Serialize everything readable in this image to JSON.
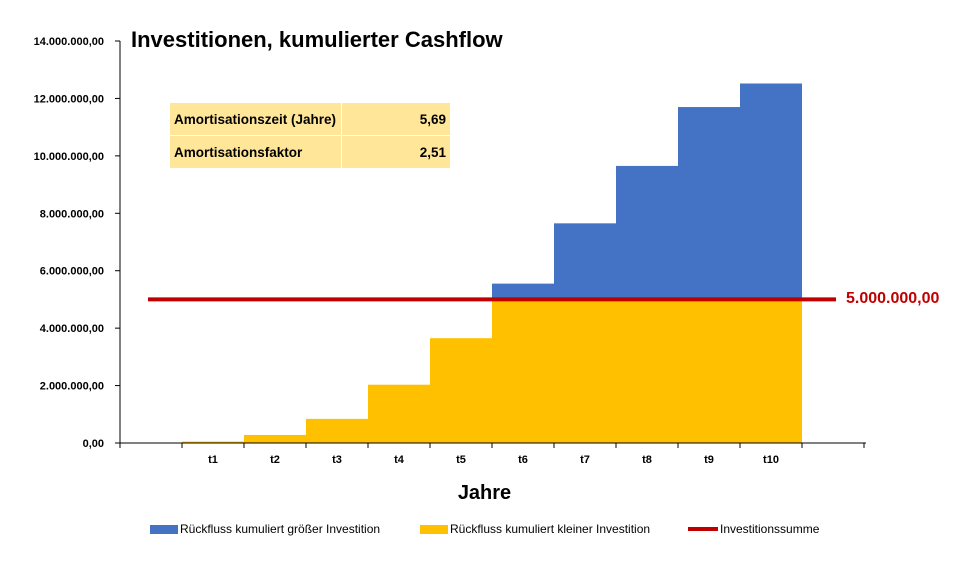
{
  "chart_data": {
    "type": "bar",
    "title": "Investitionen, kumulierter Cashflow",
    "xlabel": "Jahre",
    "ylabel": "",
    "categories": [
      "t1",
      "t2",
      "t3",
      "t4",
      "t5",
      "t6",
      "t7",
      "t8",
      "t9",
      "t10"
    ],
    "ylim": [
      0,
      14000000
    ],
    "yticks": [
      0,
      2000000,
      4000000,
      6000000,
      8000000,
      10000000,
      12000000,
      14000000
    ],
    "ytick_labels": [
      "0,00",
      "2.000.000,00",
      "4.000.000,00",
      "6.000.000,00",
      "8.000.000,00",
      "10.000.000,00",
      "12.000.000,00",
      "14.000.000,00"
    ],
    "stacked": true,
    "series": [
      {
        "name": "Rückfluss kumuliert kleiner Investition",
        "color": "#ffc000",
        "values": [
          50000,
          280000,
          840000,
          2030000,
          3650000,
          5000000,
          5000000,
          5000000,
          5000000,
          5000000
        ]
      },
      {
        "name": "Rückfluss kumuliert größer Investition",
        "color": "#4472c4",
        "values": [
          0,
          0,
          0,
          0,
          0,
          550000,
          2650000,
          4650000,
          6700000,
          7520000
        ]
      }
    ],
    "reference_line": {
      "name": "Investitionssumme",
      "value": 5000000,
      "label": "5.000.000,00",
      "color": "#c00000"
    },
    "legend_position": "bottom",
    "grid": false
  },
  "info_table": [
    {
      "label": "Amortisationszeit (Jahre)",
      "value": "5,69"
    },
    {
      "label": "Amortisationsfaktor",
      "value": "2,51"
    }
  ],
  "legend": [
    {
      "label": "Rückfluss kumuliert größer Investition",
      "color": "#4472c4"
    },
    {
      "label": "Rückfluss kumuliert kleiner Investition",
      "color": "#ffc000"
    },
    {
      "label": "Investitionssumme",
      "color": "#c00000"
    }
  ]
}
